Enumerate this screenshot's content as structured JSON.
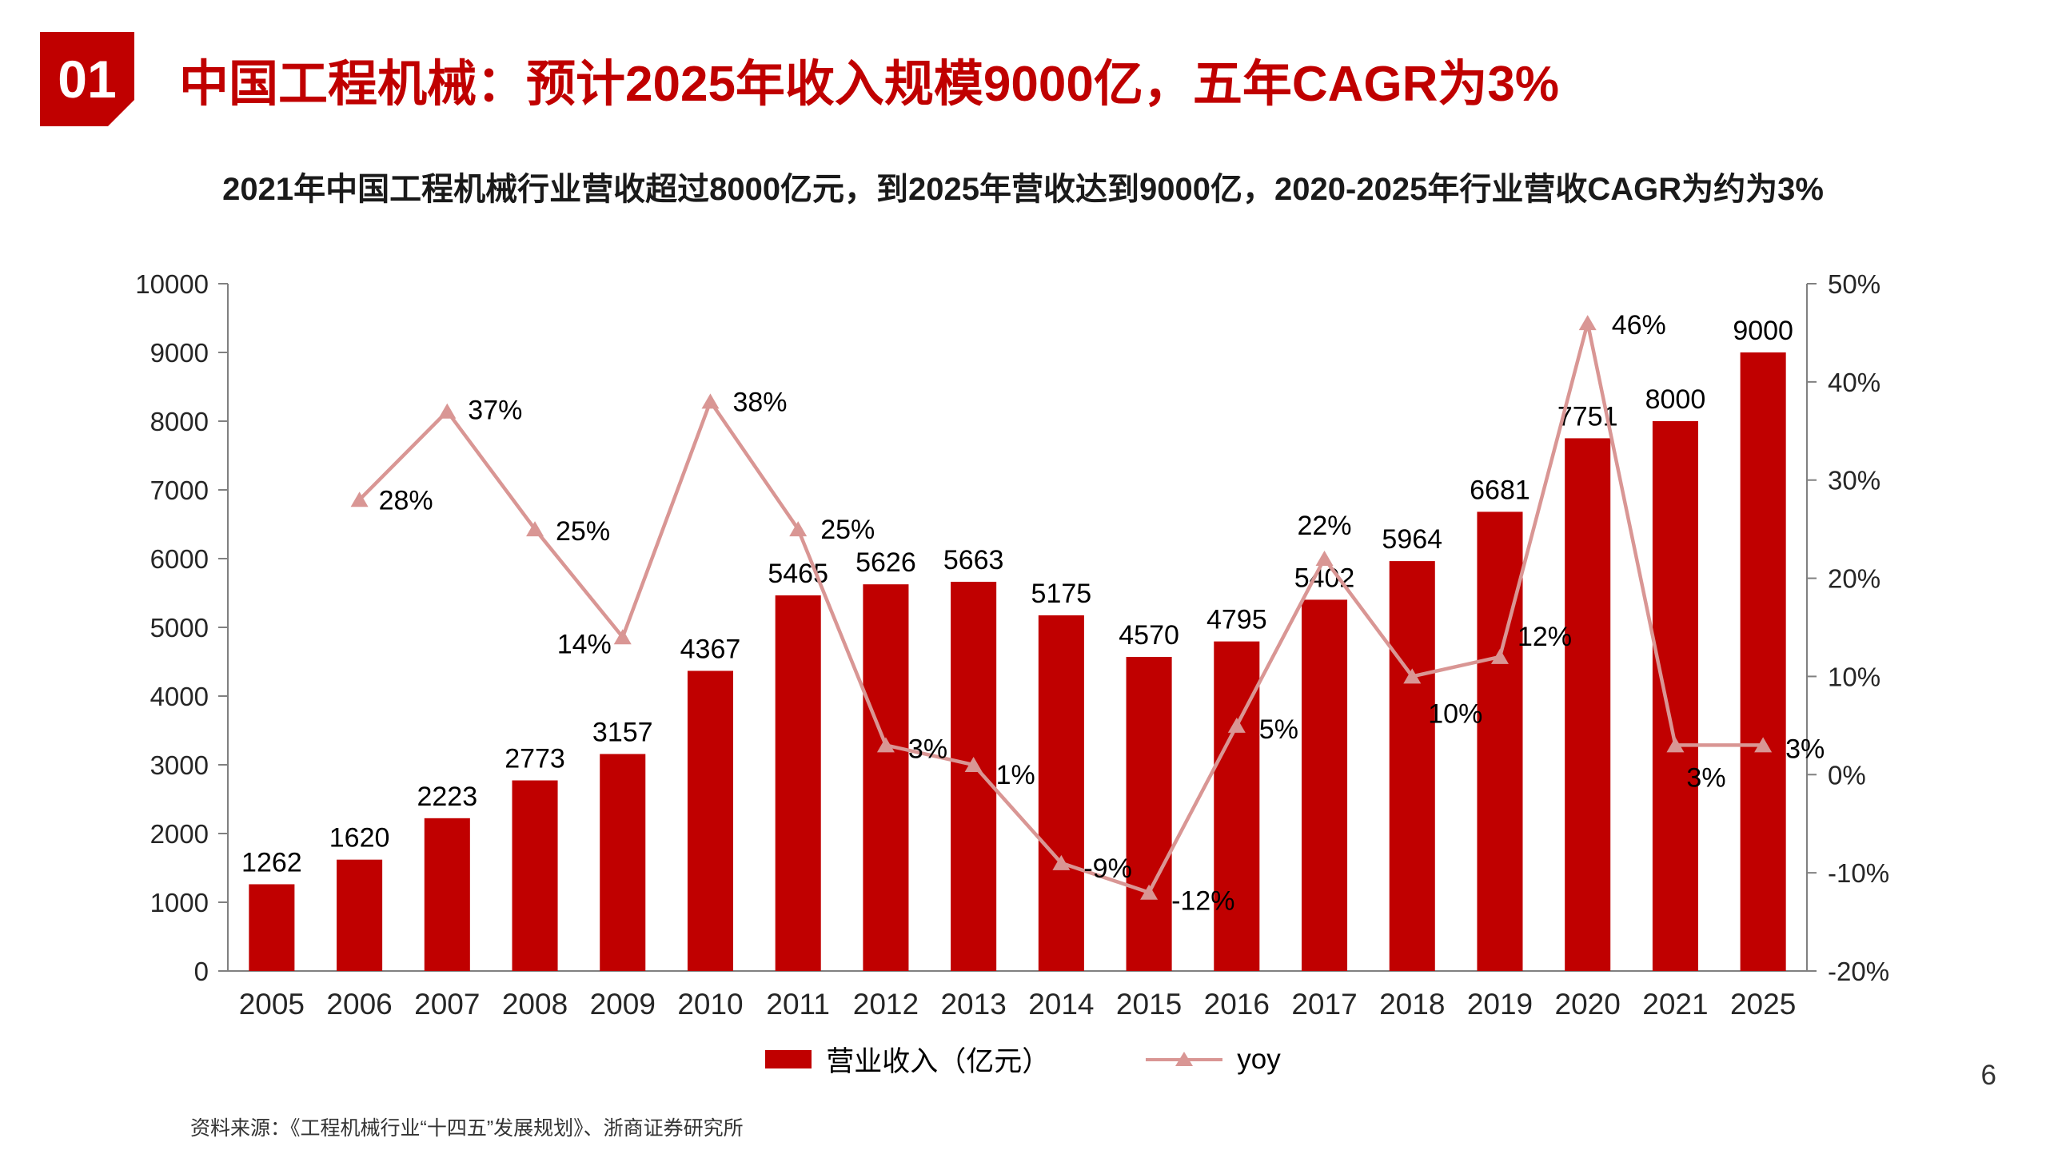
{
  "header": {
    "badge": "01",
    "title": "中国工程机械：预计2025年收入规模9000亿，五年CAGR为3%",
    "subtitle": "2021年中国工程机械行业营收超过8000亿元，到2025年营收达到9000亿，2020-2025年行业营收CAGR为约为3%",
    "accent_color": "#c00000"
  },
  "chart_data": {
    "type": "bar",
    "subtype": "bar+line combo, dual axis",
    "categories": [
      "2005",
      "2006",
      "2007",
      "2008",
      "2009",
      "2010",
      "2011",
      "2012",
      "2013",
      "2014",
      "2015",
      "2016",
      "2017",
      "2018",
      "2019",
      "2020",
      "2021",
      "2025"
    ],
    "series": [
      {
        "name": "营业收入（亿元）",
        "type": "bar",
        "axis": "left",
        "color": "#c00000",
        "values": [
          1262,
          1620,
          2223,
          2773,
          3157,
          4367,
          5465,
          5626,
          5663,
          5175,
          4570,
          4795,
          5402,
          5964,
          6681,
          7751,
          8000,
          9000
        ]
      },
      {
        "name": "yoy",
        "type": "line",
        "axis": "right",
        "color": "#d99694",
        "values": [
          null,
          28,
          37,
          25,
          14,
          38,
          25,
          3,
          1,
          -9,
          -12,
          5,
          22,
          10,
          12,
          46,
          3,
          3
        ],
        "labels": [
          null,
          "28%",
          "37%",
          "25%",
          "14%",
          "38%",
          "25%",
          "3%",
          "1%",
          "-9%",
          "-12%",
          "5%",
          "22%",
          "10%",
          "12%",
          "46%",
          "3%",
          "3%"
        ]
      }
    ],
    "left_axis": {
      "min": 0,
      "max": 10000,
      "step": 1000
    },
    "right_axis": {
      "min": -20,
      "max": 50,
      "step": 10,
      "suffix": "%"
    },
    "grid": false,
    "legend_position": "bottom",
    "label_offsets": [
      null,
      [
        24,
        12,
        "start"
      ],
      [
        26,
        10,
        "start"
      ],
      [
        26,
        14,
        "start"
      ],
      [
        -14,
        20,
        "end"
      ],
      [
        28,
        12,
        "start"
      ],
      [
        28,
        12,
        "start"
      ],
      [
        28,
        16,
        "start"
      ],
      [
        28,
        24,
        "start"
      ],
      [
        28,
        18,
        "start"
      ],
      [
        28,
        22,
        "start"
      ],
      [
        28,
        16,
        "start"
      ],
      [
        0,
        -30,
        "middle"
      ],
      [
        20,
        58,
        "start"
      ],
      [
        22,
        -14,
        "start"
      ],
      [
        30,
        14,
        "start"
      ],
      [
        14,
        52,
        "start"
      ],
      [
        28,
        16,
        "start"
      ]
    ]
  },
  "footer": {
    "source": "资料来源：《工程机械行业“十四五”发展规划》、浙商证券研究所",
    "page_number": "6"
  }
}
